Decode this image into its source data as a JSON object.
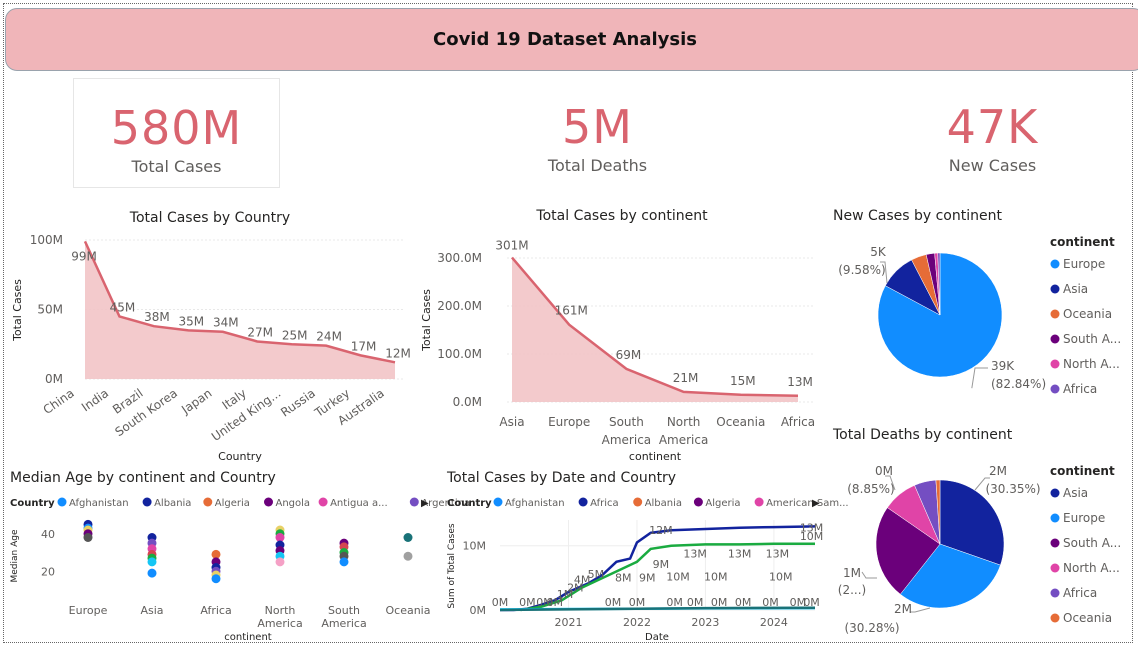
{
  "header": {
    "title": "Covid 19 Dataset Analysis"
  },
  "kpis": [
    {
      "value": "580M",
      "label": "Total Cases"
    },
    {
      "value": "5M",
      "label": "Total Deaths"
    },
    {
      "value": "47K",
      "label": "New Cases"
    }
  ],
  "colors": {
    "accent": "#d9646f",
    "area_fill": "#f2c4c6",
    "banner": "#f0b5b9"
  },
  "legend_arrow": "▶",
  "chart_data": [
    {
      "type": "area",
      "title": "Total Cases by Country",
      "xlabel": "Country",
      "ylabel": "Total Cases",
      "categories": [
        "China",
        "India",
        "Brazil",
        "South Korea",
        "Japan",
        "Italy",
        "United King...",
        "Russia",
        "Turkey",
        "Australia"
      ],
      "values": [
        99,
        45,
        38,
        35,
        34,
        27,
        25,
        24,
        17,
        12
      ],
      "data_labels": [
        "99M",
        "45M",
        "38M",
        "35M",
        "34M",
        "27M",
        "25M",
        "24M",
        "17M",
        "12M"
      ],
      "yticks": [
        {
          "v": 0,
          "label": "0M"
        },
        {
          "v": 50,
          "label": "50M"
        },
        {
          "v": 100,
          "label": "100M"
        }
      ],
      "ylim": [
        0,
        100
      ]
    },
    {
      "type": "area",
      "title": "Total Cases by continent",
      "xlabel": "continent",
      "ylabel": "Total Cases",
      "categories": [
        "Asia",
        "Europe",
        "South America",
        "North America",
        "Oceania",
        "Africa"
      ],
      "category_lines": [
        [
          "Asia"
        ],
        [
          "Europe"
        ],
        [
          "South",
          "America"
        ],
        [
          "North",
          "America"
        ],
        [
          "Oceania"
        ],
        [
          "Africa"
        ]
      ],
      "values": [
        301,
        161,
        69,
        21,
        15,
        13
      ],
      "data_labels": [
        "301M",
        "161M",
        "69M",
        "21M",
        "15M",
        "13M"
      ],
      "yticks": [
        {
          "v": 0,
          "label": "0.0M"
        },
        {
          "v": 100,
          "label": "100.0M"
        },
        {
          "v": 200,
          "label": "200.0M"
        },
        {
          "v": 300,
          "label": "300.0M"
        }
      ],
      "ylim": [
        0,
        300
      ]
    },
    {
      "type": "pie",
      "title": "New Cases by continent",
      "legend_title": "continent",
      "legend": [
        "Europe",
        "Asia",
        "Oceania",
        "South A...",
        "North A...",
        "Africa"
      ],
      "slices": [
        {
          "name": "Europe",
          "value": 82.84,
          "color": "#118dff"
        },
        {
          "name": "Asia",
          "value": 9.58,
          "color": "#12239e"
        },
        {
          "name": "Oceania",
          "value": 4.0,
          "color": "#e66c37"
        },
        {
          "name": "South America",
          "value": 2.2,
          "color": "#6b007b"
        },
        {
          "name": "North America",
          "value": 0.8,
          "color": "#e044a7"
        },
        {
          "name": "Africa",
          "value": 0.58,
          "color": "#744ec2"
        }
      ],
      "labels": [
        {
          "value": "39K",
          "pct": "(82.84%)"
        },
        {
          "value": "5K",
          "pct": "(9.58%)"
        }
      ]
    },
    {
      "type": "scatter",
      "title": "Median Age by continent and Country",
      "legend_title": "Country",
      "legend": [
        {
          "name": "Afghanistan",
          "color": "#118dff"
        },
        {
          "name": "Albania",
          "color": "#12239e"
        },
        {
          "name": "Algeria",
          "color": "#e66c37"
        },
        {
          "name": "Angola",
          "color": "#6b007b"
        },
        {
          "name": "Antigua a...",
          "color": "#e044a7"
        },
        {
          "name": "Argentina",
          "color": "#744ec2"
        }
      ],
      "xlabel": "continent",
      "ylabel": "Median Age",
      "categories": [
        "Europe",
        "Asia",
        "Africa",
        "North America",
        "South America",
        "Oceania"
      ],
      "category_lines": [
        [
          "Europe"
        ],
        [
          "Asia"
        ],
        [
          "Africa"
        ],
        [
          "North",
          "America"
        ],
        [
          "South",
          "America"
        ],
        [
          "Oceania"
        ]
      ],
      "yticks": [
        {
          "v": 20,
          "label": "20"
        },
        {
          "v": 40,
          "label": "40"
        }
      ],
      "points": [
        {
          "c": 0,
          "y": 45,
          "color": "#12239e"
        },
        {
          "c": 0,
          "y": 43,
          "color": "#118dff"
        },
        {
          "c": 0,
          "y": 42,
          "color": "#e8d166"
        },
        {
          "c": 0,
          "y": 40,
          "color": "#6b007b"
        },
        {
          "c": 0,
          "y": 38,
          "color": "#555555"
        },
        {
          "c": 1,
          "y": 38,
          "color": "#12239e"
        },
        {
          "c": 1,
          "y": 35,
          "color": "#744ec2"
        },
        {
          "c": 1,
          "y": 32,
          "color": "#e044a7"
        },
        {
          "c": 1,
          "y": 29,
          "color": "#d64550"
        },
        {
          "c": 1,
          "y": 27,
          "color": "#1aab40"
        },
        {
          "c": 1,
          "y": 25,
          "color": "#15c6f4"
        },
        {
          "c": 1,
          "y": 19,
          "color": "#118dff"
        },
        {
          "c": 2,
          "y": 29,
          "color": "#e66c37"
        },
        {
          "c": 2,
          "y": 25,
          "color": "#6b007b"
        },
        {
          "c": 2,
          "y": 22,
          "color": "#12239e"
        },
        {
          "c": 2,
          "y": 20,
          "color": "#744ec2"
        },
        {
          "c": 2,
          "y": 18,
          "color": "#e8d166"
        },
        {
          "c": 2,
          "y": 16,
          "color": "#118dff"
        },
        {
          "c": 3,
          "y": 42,
          "color": "#e8d166"
        },
        {
          "c": 3,
          "y": 40,
          "color": "#1aab40"
        },
        {
          "c": 3,
          "y": 38,
          "color": "#e044a7"
        },
        {
          "c": 3,
          "y": 34,
          "color": "#12239e"
        },
        {
          "c": 3,
          "y": 31,
          "color": "#6b007b"
        },
        {
          "c": 3,
          "y": 28,
          "color": "#15c6f4"
        },
        {
          "c": 3,
          "y": 25,
          "color": "#f5a1c6"
        },
        {
          "c": 4,
          "y": 35,
          "color": "#6b007b"
        },
        {
          "c": 4,
          "y": 33,
          "color": "#d64550"
        },
        {
          "c": 4,
          "y": 30,
          "color": "#1aab40"
        },
        {
          "c": 4,
          "y": 28,
          "color": "#555555"
        },
        {
          "c": 4,
          "y": 25,
          "color": "#118dff"
        },
        {
          "c": 5,
          "y": 38,
          "color": "#197278"
        },
        {
          "c": 5,
          "y": 28,
          "color": "#a0a0a0"
        }
      ],
      "ylim": [
        10,
        50
      ]
    },
    {
      "type": "line",
      "title": "Total Cases by Date and Country",
      "legend_title": "Country",
      "legend": [
        {
          "name": "Afghanistan",
          "color": "#118dff"
        },
        {
          "name": "Africa",
          "color": "#12239e"
        },
        {
          "name": "Albania",
          "color": "#e66c37"
        },
        {
          "name": "Algeria",
          "color": "#6b007b"
        },
        {
          "name": "American Sam...",
          "color": "#e044a7"
        }
      ],
      "xlabel": "Date",
      "ylabel": "Sum of Total Cases",
      "xticks": [
        {
          "v": 2021,
          "label": "2021"
        },
        {
          "v": 2022,
          "label": "2022"
        },
        {
          "v": 2023,
          "label": "2023"
        },
        {
          "v": 2024,
          "label": "2024"
        }
      ],
      "yticks": [
        {
          "v": 0,
          "label": "0M"
        },
        {
          "v": 10,
          "label": "10M"
        }
      ],
      "xlim": [
        2020.0,
        2024.6
      ],
      "ylim": [
        0,
        14
      ],
      "series": [
        {
          "name": "Africa",
          "color": "#12239e",
          "points": [
            [
              2020.0,
              0
            ],
            [
              2020.2,
              0
            ],
            [
              2020.4,
              0.2
            ],
            [
              2020.6,
              0.8
            ],
            [
              2020.8,
              1.5
            ],
            [
              2021.0,
              2.8
            ],
            [
              2021.3,
              4.2
            ],
            [
              2021.5,
              5.5
            ],
            [
              2021.7,
              7.5
            ],
            [
              2021.9,
              8.0
            ],
            [
              2022.0,
              10.5
            ],
            [
              2022.2,
              12.0
            ],
            [
              2022.5,
              12.4
            ],
            [
              2023.0,
              12.6
            ],
            [
              2023.5,
              12.8
            ],
            [
              2024.0,
              12.9
            ],
            [
              2024.6,
              13.0
            ]
          ]
        },
        {
          "name": "Algeria",
          "color": "#1aab40",
          "points": [
            [
              2020.3,
              0
            ],
            [
              2020.6,
              0.5
            ],
            [
              2020.9,
              1.5
            ],
            [
              2021.2,
              3.5
            ],
            [
              2021.5,
              5.0
            ],
            [
              2021.8,
              6.5
            ],
            [
              2022.0,
              7.5
            ],
            [
              2022.2,
              9.5
            ],
            [
              2022.5,
              10.0
            ],
            [
              2023.0,
              10.2
            ],
            [
              2023.5,
              10.2
            ],
            [
              2024.0,
              10.3
            ],
            [
              2024.6,
              10.3
            ]
          ]
        },
        {
          "name": "Afghanistan",
          "color": "#15c6f4",
          "points": [
            [
              2020.0,
              0.1
            ],
            [
              2021.0,
              0.15
            ],
            [
              2022.0,
              0.2
            ],
            [
              2023.0,
              0.25
            ],
            [
              2024.6,
              0.3
            ]
          ]
        },
        {
          "name": "Albania",
          "color": "#197278",
          "points": [
            [
              2020.0,
              0
            ],
            [
              2021.0,
              0.1
            ],
            [
              2022.0,
              0.2
            ],
            [
              2023.0,
              0.3
            ],
            [
              2024.6,
              0.35
            ]
          ]
        }
      ],
      "annotations": [
        {
          "x": 2020.0,
          "y": 0.6,
          "label": "0M"
        },
        {
          "x": 2020.4,
          "y": 0.6,
          "label": "0M"
        },
        {
          "x": 2020.65,
          "y": 0.6,
          "label": "0M"
        },
        {
          "x": 2020.8,
          "y": 0.6,
          "label": "0M"
        },
        {
          "x": 2020.95,
          "y": 1.9,
          "label": "1M"
        },
        {
          "x": 2021.1,
          "y": 2.9,
          "label": "2M"
        },
        {
          "x": 2021.2,
          "y": 4.1,
          "label": "4M"
        },
        {
          "x": 2021.4,
          "y": 5.0,
          "label": "5M"
        },
        {
          "x": 2021.8,
          "y": 4.4,
          "label": "8M"
        },
        {
          "x": 2022.15,
          "y": 4.4,
          "label": "9M"
        },
        {
          "x": 2022.35,
          "y": 6.5,
          "label": "9M"
        },
        {
          "x": 2022.35,
          "y": 11.8,
          "label": "12M"
        },
        {
          "x": 2022.6,
          "y": 4.6,
          "label": "10M"
        },
        {
          "x": 2022.85,
          "y": 8.2,
          "label": "13M"
        },
        {
          "x": 2023.15,
          "y": 4.6,
          "label": "10M"
        },
        {
          "x": 2023.5,
          "y": 8.2,
          "label": "13M"
        },
        {
          "x": 2024.05,
          "y": 8.2,
          "label": "13M"
        },
        {
          "x": 2024.1,
          "y": 4.6,
          "label": "10M"
        },
        {
          "x": 2024.55,
          "y": 12.2,
          "label": "13M"
        },
        {
          "x": 2024.55,
          "y": 10.9,
          "label": "10M"
        },
        {
          "x": 2022.55,
          "y": 0.6,
          "label": "0M"
        },
        {
          "x": 2022.85,
          "y": 0.6,
          "label": "0M"
        },
        {
          "x": 2023.2,
          "y": 0.6,
          "label": "0M"
        },
        {
          "x": 2023.55,
          "y": 0.6,
          "label": "0M"
        },
        {
          "x": 2023.95,
          "y": 0.6,
          "label": "0M"
        },
        {
          "x": 2024.35,
          "y": 0.6,
          "label": "0M"
        },
        {
          "x": 2024.55,
          "y": 0.6,
          "label": "0M"
        },
        {
          "x": 2021.65,
          "y": 0.6,
          "label": "0M"
        },
        {
          "x": 2022.0,
          "y": 0.6,
          "label": "0M"
        }
      ]
    },
    {
      "type": "pie",
      "title": "Total Deaths by continent",
      "legend_title": "continent",
      "legend": [
        "Asia",
        "Europe",
        "South A...",
        "North A...",
        "Africa",
        "Oceania"
      ],
      "slices": [
        {
          "name": "Asia",
          "value": 30.35,
          "color": "#12239e"
        },
        {
          "name": "Europe",
          "value": 30.28,
          "color": "#118dff"
        },
        {
          "name": "South America",
          "value": 24.0,
          "color": "#6b007b"
        },
        {
          "name": "North America",
          "value": 8.85,
          "color": "#e044a7"
        },
        {
          "name": "Africa",
          "value": 5.5,
          "color": "#744ec2"
        },
        {
          "name": "Oceania",
          "value": 1.02,
          "color": "#e66c37"
        }
      ],
      "labels": [
        {
          "value": "2M",
          "pct": "(30.35%)"
        },
        {
          "value": "2M",
          "pct": "(30.28%)"
        },
        {
          "value": "1M",
          "pct": "(2...)"
        },
        {
          "value": "0M",
          "pct": "(8.85%)"
        }
      ]
    }
  ]
}
